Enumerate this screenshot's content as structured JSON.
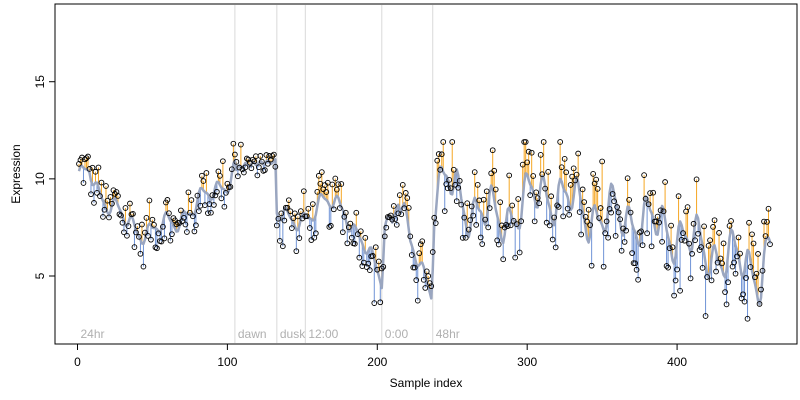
{
  "chart_data": {
    "type": "scatter",
    "title": "",
    "xlabel": "Sample index",
    "ylabel": "Expression",
    "xlim": [
      -15,
      480
    ],
    "ylim": [
      1.5,
      19
    ],
    "xticks": [
      0,
      100,
      200,
      300,
      400
    ],
    "yticks": [
      5,
      10,
      15
    ],
    "grid": false,
    "legend": "none",
    "colors": {
      "fit_line": "#9aa6c0",
      "above_segment": "#f5a623",
      "below_segment": "#6f93d6",
      "point_stroke": "#000000",
      "annotation_line": "#d9d9d9",
      "annotation_text": "#b0b0b0"
    },
    "annotations": [
      {
        "label": "24hr",
        "x": 0
      },
      {
        "label": "dawn",
        "x": 105
      },
      {
        "label": "dusk",
        "x": 133
      },
      {
        "label": "12:00",
        "x": 152
      },
      {
        "label": "0:00",
        "x": 203
      },
      {
        "label": "48hr",
        "x": 237
      }
    ],
    "fit_knots": [
      [
        1,
        9.8
      ],
      [
        8,
        10.6
      ],
      [
        14,
        9.4
      ],
      [
        22,
        8.6
      ],
      [
        30,
        8.0
      ],
      [
        40,
        7.4
      ],
      [
        50,
        7.3
      ],
      [
        62,
        7.7
      ],
      [
        72,
        8.2
      ],
      [
        82,
        8.8
      ],
      [
        92,
        9.5
      ],
      [
        100,
        9.9
      ],
      [
        104,
        10.4
      ],
      [
        110,
        10.7
      ],
      [
        120,
        10.8
      ],
      [
        132,
        10.9
      ],
      [
        133,
        8.3
      ],
      [
        140,
        7.7
      ],
      [
        150,
        8.0
      ],
      [
        160,
        8.5
      ],
      [
        170,
        8.8
      ],
      [
        178,
        8.6
      ],
      [
        185,
        7.2
      ],
      [
        192,
        6.4
      ],
      [
        198,
        5.5
      ],
      [
        203,
        5.0
      ],
      [
        205,
        8.0
      ],
      [
        210,
        7.8
      ],
      [
        214,
        9.0
      ],
      [
        218,
        8.2
      ],
      [
        222,
        6.5
      ],
      [
        228,
        5.8
      ],
      [
        236,
        4.3
      ],
      [
        238,
        9.0
      ],
      [
        242,
        9.4
      ],
      [
        248,
        9.8
      ],
      [
        256,
        9.0
      ],
      [
        264,
        8.4
      ],
      [
        272,
        8.2
      ],
      [
        280,
        7.9
      ],
      [
        288,
        8.1
      ],
      [
        296,
        8.6
      ],
      [
        304,
        9.1
      ],
      [
        312,
        9.4
      ],
      [
        320,
        9.1
      ],
      [
        330,
        8.8
      ],
      [
        340,
        8.3
      ],
      [
        350,
        8.0
      ],
      [
        360,
        8.2
      ],
      [
        370,
        8.0
      ],
      [
        380,
        7.8
      ],
      [
        390,
        7.5
      ],
      [
        400,
        7.2
      ],
      [
        410,
        6.7
      ],
      [
        420,
        6.3
      ],
      [
        430,
        6.0
      ],
      [
        440,
        5.8
      ],
      [
        450,
        5.5
      ],
      [
        456,
        5.0
      ],
      [
        461,
        6.3
      ]
    ],
    "n_points": 462,
    "points_y_range": [
      2.8,
      11.9
    ]
  }
}
